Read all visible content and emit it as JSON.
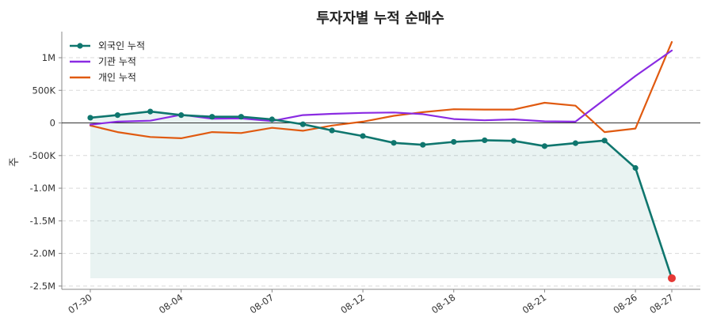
{
  "chart_data": {
    "type": "line",
    "title": "투자자별 누적 순매수",
    "xlabel": "",
    "ylabel": "주",
    "y_tick_values": [
      1000000,
      500000,
      0,
      -500000,
      -1000000,
      -1500000,
      -2000000,
      -2500000
    ],
    "y_tick_labels": [
      "1M",
      "500K",
      "0",
      "-500K",
      "-1.0M",
      "-1.5M",
      "-2.0M",
      "-2.5M"
    ],
    "ylim": [
      -2550000,
      1400000
    ],
    "x_tick_labels": [
      "07-30",
      "08-04",
      "08-07",
      "08-12",
      "08-18",
      "08-21",
      "08-26",
      "08-27"
    ],
    "x_tick_index": [
      0,
      5,
      10,
      15,
      20,
      25,
      30,
      32
    ],
    "n_points": 33,
    "grid": "horizontal-dashed",
    "legend_position": "top-left",
    "series": [
      {
        "name": "외국인 누적",
        "color": "#0f766e",
        "markers": true,
        "x_index": [
          0,
          1.5,
          3.3,
          5,
          6.7,
          8.3,
          10,
          11.7,
          13.3,
          15,
          16.7,
          18.3,
          20,
          21.7,
          23.3,
          25,
          26.7,
          28.3,
          30,
          32
        ],
        "values": [
          80000,
          120000,
          175000,
          120000,
          95000,
          95000,
          55000,
          -20000,
          -115000,
          -200000,
          -305000,
          -335000,
          -290000,
          -265000,
          -275000,
          -355000,
          -310000,
          -270000,
          -690000,
          -2380000
        ]
      },
      {
        "name": "기관 누적",
        "color": "#8a2be2",
        "markers": false,
        "x_index": [
          0,
          1.5,
          3.3,
          5,
          6.7,
          8.3,
          10,
          11.7,
          13.3,
          15,
          16.7,
          18.3,
          20,
          21.7,
          23.3,
          25,
          26.7,
          30,
          32
        ],
        "values": [
          -25000,
          20000,
          35000,
          125000,
          65000,
          70000,
          30000,
          120000,
          140000,
          155000,
          160000,
          135000,
          60000,
          40000,
          55000,
          25000,
          20000,
          720000,
          1110000
        ]
      },
      {
        "name": "개인 누적",
        "color": "#e05a10",
        "markers": false,
        "x_index": [
          0,
          1.5,
          3.3,
          5,
          6.7,
          8.3,
          10,
          11.7,
          13.3,
          15,
          16.7,
          18.3,
          20,
          21.7,
          23.3,
          25,
          26.7,
          28.3,
          30,
          32
        ],
        "values": [
          -40000,
          -140000,
          -215000,
          -235000,
          -140000,
          -155000,
          -75000,
          -120000,
          -40000,
          20000,
          110000,
          165000,
          210000,
          205000,
          205000,
          310000,
          265000,
          -140000,
          -85000,
          1240000
        ]
      }
    ],
    "highlight_point": {
      "series": "외국인 누적",
      "index": 32,
      "value": -2380000,
      "color": "#e53935"
    }
  }
}
